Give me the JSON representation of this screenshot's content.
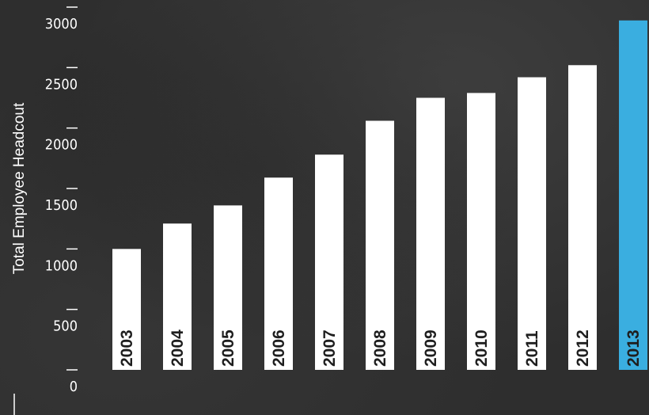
{
  "chart_data": {
    "type": "bar",
    "title": "",
    "xlabel": "",
    "ylabel": "Total Employee Headcout",
    "categories": [
      "2003",
      "2004",
      "2005",
      "2006",
      "2007",
      "2008",
      "2009",
      "2010",
      "2011",
      "2012",
      "2013"
    ],
    "values": [
      1000,
      1210,
      1360,
      1590,
      1780,
      2060,
      2250,
      2290,
      2420,
      2520,
      2890
    ],
    "ylim": [
      0,
      3000
    ],
    "yticks": [
      0,
      500,
      1000,
      1500,
      2000,
      2500,
      3000
    ],
    "grid": false,
    "legend": "none",
    "colors": {
      "bar": "#ffffff",
      "highlight_bar": "#3aaee0",
      "background": "#2d2d2d",
      "text": "#ffffff"
    },
    "highlight_category": "2013"
  }
}
